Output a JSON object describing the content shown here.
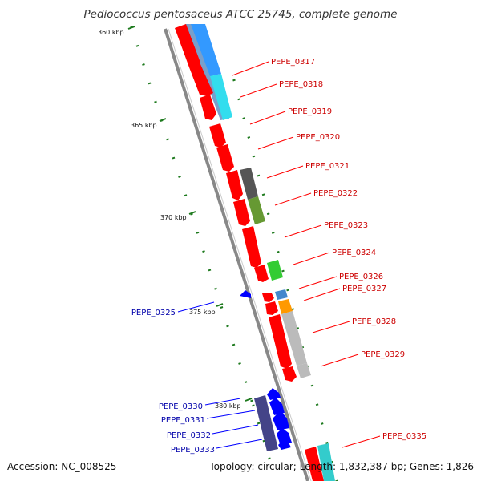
{
  "title": "Pediococcus pentosaceus ATCC 25745, complete genome",
  "accession": "Accession: NC_008525",
  "summary": "Topology: circular; Length: 1,832,387 bp; Genes: 1,826",
  "colors": {
    "forward_cds": "#ff0000",
    "reverse_cds": "#0000ff",
    "forward_label": "#cc0000",
    "reverse_label": "#0000aa",
    "backbone": "#888888",
    "tick": "#1e7a1e"
  },
  "scale_labels": [
    "360 kbp",
    "365 kbp",
    "370 kbp",
    "375 kbp",
    "380 kbp"
  ],
  "forward_genes": [
    "PEPE_0317",
    "PEPE_0318",
    "PEPE_0319",
    "PEPE_0320",
    "PEPE_0321",
    "PEPE_0322",
    "PEPE_0323",
    "PEPE_0324",
    "PEPE_0326",
    "PEPE_0327",
    "PEPE_0328",
    "PEPE_0329",
    "PEPE_0335"
  ],
  "reverse_genes": [
    "PEPE_0325",
    "PEPE_0330",
    "PEPE_0331",
    "PEPE_0332",
    "PEPE_0333"
  ],
  "cog_colors": [
    "#3399ff",
    "#33ccee",
    "#555555",
    "#669933",
    "#33cc33",
    "#4488cc",
    "#ff9900",
    "#bbbbbb",
    "#bbbbbb",
    "#444488",
    "#33cccc"
  ]
}
